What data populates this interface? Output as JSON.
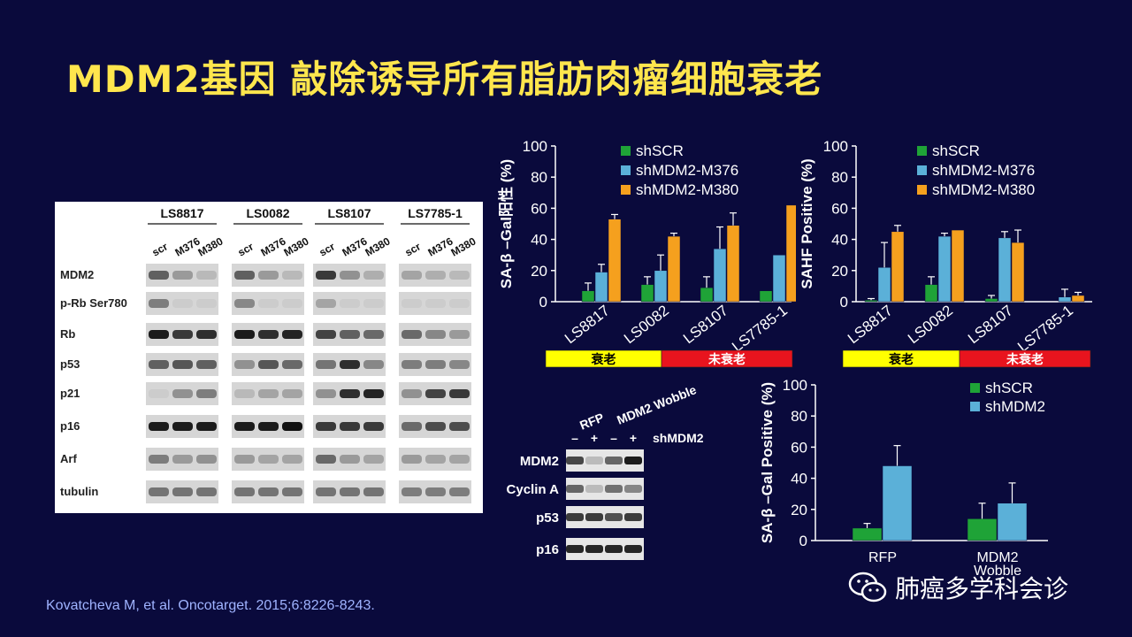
{
  "slide": {
    "title": "MDM2基因 敲除诱导所有脂肪肉瘤细胞衰老",
    "citation": "Kovatcheva M, et al. Oncotarget. 2015;6:8226-8243.",
    "watermark": "肺癌多学科会诊",
    "colors": {
      "background": "#0a0a3c",
      "title": "#ffe64d",
      "green": "#1fa337",
      "blue": "#5bb0d8",
      "orange": "#f5a01e",
      "senescent": "#ffff00",
      "non_senescent": "#e8141e"
    }
  },
  "western_blot_1": {
    "cell_lines": [
      "LS8817",
      "LS0082",
      "LS8107",
      "LS7785-1"
    ],
    "lane_labels": [
      "scr",
      "M376",
      "M380"
    ],
    "proteins": [
      "MDM2",
      "p-Rb Ser780",
      "Rb",
      "p53",
      "p21",
      "p16",
      "Arf",
      "tubulin"
    ]
  },
  "western_blot_2": {
    "groups": [
      "RFP",
      "MDM2 Wobble"
    ],
    "lane_signs": [
      "–",
      "+",
      "–",
      "+"
    ],
    "condition_label": "shMDM2",
    "proteins": [
      "MDM2",
      "Cyclin A",
      "p53",
      "p16"
    ]
  },
  "chart_data": [
    {
      "type": "bar",
      "ylabel": "SA-β –Gal阳性 (%)",
      "ylim": [
        0,
        100
      ],
      "yticks": [
        "0",
        "20",
        "40",
        "60",
        "80",
        "100"
      ],
      "categories": [
        "LS8817",
        "LS0082",
        "LS8107",
        "LS7785-1"
      ],
      "series": [
        {
          "name": "shSCR",
          "values": [
            7,
            11,
            9,
            7
          ],
          "errors": [
            5,
            5,
            7,
            0
          ]
        },
        {
          "name": "shMDM2-M376",
          "values": [
            19,
            20,
            34,
            30
          ],
          "errors": [
            5,
            10,
            14,
            0
          ]
        },
        {
          "name": "shMDM2-M380",
          "values": [
            53,
            42,
            49,
            62
          ],
          "errors": [
            3,
            2,
            8,
            0
          ]
        }
      ],
      "bands": [
        {
          "label": "衰老",
          "span": [
            0,
            1
          ]
        },
        {
          "label": "未衰老",
          "span": [
            2,
            3
          ]
        }
      ]
    },
    {
      "type": "bar",
      "ylabel": "SAHF Positive (%)",
      "ylim": [
        0,
        100
      ],
      "yticks": [
        "0",
        "20",
        "40",
        "60",
        "80",
        "100"
      ],
      "categories": [
        "LS8817",
        "LS0082",
        "LS8107",
        "LS7785-1"
      ],
      "series": [
        {
          "name": "shSCR",
          "values": [
            1,
            11,
            2,
            0
          ],
          "errors": [
            1,
            5,
            2,
            0
          ]
        },
        {
          "name": "shMDM2-M376",
          "values": [
            22,
            42,
            41,
            3
          ],
          "errors": [
            16,
            2,
            4,
            5
          ]
        },
        {
          "name": "shMDM2-M380",
          "values": [
            45,
            46,
            38,
            4
          ],
          "errors": [
            4,
            0,
            8,
            2
          ]
        }
      ],
      "bands": [
        {
          "label": "衰老",
          "span": [
            0,
            1
          ]
        },
        {
          "label": "未衰老",
          "span": [
            2,
            3
          ]
        }
      ]
    },
    {
      "type": "bar",
      "ylabel": "SA-β –Gal Positive (%)",
      "ylim": [
        0,
        100
      ],
      "yticks": [
        "0",
        "20",
        "40",
        "60",
        "80",
        "100"
      ],
      "categories": [
        "RFP",
        "MDM2 Wobble"
      ],
      "category_lines": [
        [
          "RFP"
        ],
        [
          "MDM2",
          "Wobble"
        ]
      ],
      "series": [
        {
          "name": "shSCR",
          "values": [
            8,
            14
          ],
          "errors": [
            3,
            10
          ]
        },
        {
          "name": "shMDM2",
          "values": [
            48,
            24
          ],
          "errors": [
            13,
            13
          ]
        }
      ]
    }
  ]
}
